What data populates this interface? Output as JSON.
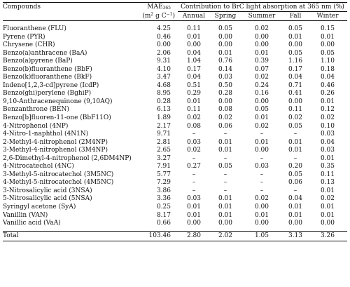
{
  "header": {
    "compounds": "Compounds",
    "mae_label": "MAE",
    "mae_sub": "365",
    "mae_unit_pre": "(m",
    "mae_unit_exp1": "2",
    "mae_unit_mid": " g C",
    "mae_unit_exp2": "−1",
    "mae_unit_post": ")",
    "contribution_pre": "Contribution to BrC light absorption at 365 nm (%)",
    "columns": [
      "Annual",
      "Spring",
      "Summer",
      "Fall",
      "Winter"
    ]
  },
  "rows": [
    {
      "name": "Fluoranthene (FLU)",
      "mae": "4.25",
      "v": [
        "0.11",
        "0.05",
        "0.02",
        "0.05",
        "0.15"
      ]
    },
    {
      "name": "Pyrene (PYR)",
      "mae": "0.46",
      "v": [
        "0.01",
        "0.00",
        "0.00",
        "0.01",
        "0.01"
      ]
    },
    {
      "name": "Chrysene (CHR)",
      "mae": "0.00",
      "v": [
        "0.00",
        "0.00",
        "0.00",
        "0.00",
        "0.00"
      ]
    },
    {
      "name": "Benzo(a)anthracene (BaA)",
      "mae": "2.06",
      "v": [
        "0.04",
        "0.01",
        "0.01",
        "0.05",
        "0.05"
      ]
    },
    {
      "name": "Benzo(a)pyrene (BaP)",
      "mae": "9.31",
      "v": [
        "1.04",
        "0.76",
        "0.39",
        "1.16",
        "1.10"
      ]
    },
    {
      "name": "Benzo(b)fluoranthene (BbF)",
      "mae": "4.10",
      "v": [
        "0.17",
        "0.14",
        "0.07",
        "0.17",
        "0.18"
      ]
    },
    {
      "name": "Benzo(k)fluoranthene (BkF)",
      "mae": "3.47",
      "v": [
        "0.04",
        "0.03",
        "0.02",
        "0.04",
        "0.04"
      ]
    },
    {
      "name": "Indeno[1,2,3-cd]pyrene (IcdP)",
      "mae": "4.68",
      "v": [
        "0.51",
        "0.50",
        "0.24",
        "0.71",
        "0.46"
      ]
    },
    {
      "name": "Benzo(ghi)perylene (BghiP)",
      "mae": "8.95",
      "v": [
        "0.29",
        "0.28",
        "0.16",
        "0.41",
        "0.26"
      ]
    },
    {
      "name": "9,10-Anthracenequinone (9,10AQ)",
      "mae": "0.28",
      "v": [
        "0.01",
        "0.00",
        "0.00",
        "0.00",
        "0.01"
      ]
    },
    {
      "name": "Benzanthrone (BEN)",
      "mae": "6.13",
      "v": [
        "0.11",
        "0.08",
        "0.05",
        "0.11",
        "0.12"
      ]
    },
    {
      "name": "Benzo[b]fluoren-11-one (BbF11O)",
      "mae": "1.89",
      "v": [
        "0.02",
        "0.02",
        "0.01",
        "0.02",
        "0.02"
      ]
    },
    {
      "name": "4-Nitrophenol (4NP)",
      "mae": "2.17",
      "v": [
        "0.08",
        "0.06",
        "0.02",
        "0.05",
        "0.10"
      ]
    },
    {
      "name": "4-Nitro-1-naphthol (4N1N)",
      "mae": "9.71",
      "v": [
        "–",
        "–",
        "–",
        "–",
        "0.03"
      ]
    },
    {
      "name": "2-Methyl-4-nitrophenol (2M4NP)",
      "mae": "2.81",
      "v": [
        "0.03",
        "0.01",
        "0.01",
        "0.01",
        "0.04"
      ]
    },
    {
      "name": "3-Methyl-4-nitrophenol (3M4NP)",
      "mae": "2.65",
      "v": [
        "0.02",
        "0.01",
        "0.00",
        "0.01",
        "0.03"
      ]
    },
    {
      "name": "2,6-Dimethyl-4-nitrophenol (2,6DM4NP)",
      "mae": "3.27",
      "v": [
        "–",
        "–",
        "–",
        "–",
        "0.01"
      ]
    },
    {
      "name": "4-Nitrocatechol (4NC)",
      "mae": "7.91",
      "v": [
        "0.27",
        "0.05",
        "0.03",
        "0.20",
        "0.35"
      ]
    },
    {
      "name": "3-Methyl-5-nitrocatechol (3M5NC)",
      "mae": "5.77",
      "v": [
        "–",
        "–",
        "–",
        "0.05",
        "0.11"
      ]
    },
    {
      "name": "4-Methyl-5-nitrocatechol (4M5NC)",
      "mae": "7.29",
      "v": [
        "–",
        "–",
        "–",
        "0.06",
        "0.13"
      ]
    },
    {
      "name": "3-Nitrosalicylic acid (3NSA)",
      "mae": "3.86",
      "v": [
        "–",
        "–",
        "–",
        "–",
        "0.01"
      ]
    },
    {
      "name": "5-Nitrosalicylic acid (5NSA)",
      "mae": "3.36",
      "v": [
        "0.03",
        "0.01",
        "0.02",
        "0.04",
        "0.02"
      ]
    },
    {
      "name": "Syringyl acetone (SyA)",
      "mae": "0.25",
      "v": [
        "0.01",
        "0.01",
        "0.00",
        "0.01",
        "0.01"
      ]
    },
    {
      "name": "Vanillin (VAN)",
      "mae": "8.17",
      "v": [
        "0.01",
        "0.01",
        "0.01",
        "0.01",
        "0.01"
      ]
    },
    {
      "name": "Vanillic acid (VaA)",
      "mae": "0.66",
      "v": [
        "0.00",
        "0.00",
        "0.00",
        "0.00",
        "0.00"
      ]
    }
  ],
  "total": {
    "name": "Total",
    "mae": "103.46",
    "v": [
      "2.80",
      "2.02",
      "1.05",
      "3.13",
      "3.26"
    ]
  }
}
